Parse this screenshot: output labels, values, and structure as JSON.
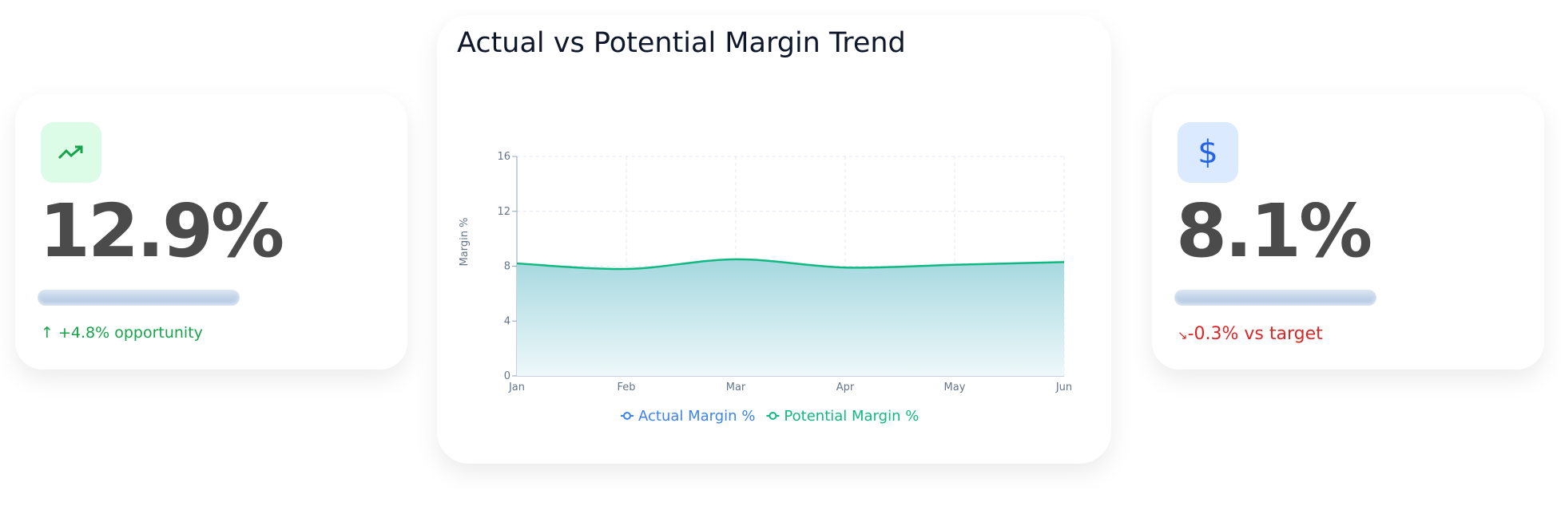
{
  "cards": [
    {
      "value": "12.9%",
      "note": "+4.8% opportunity"
    },
    {
      "value": "8.1%",
      "note": "-0.3% vs target"
    }
  ],
  "chart_data": {
    "type": "line",
    "title": "Actual vs Potential Margin Trend",
    "y_label": "Margin %",
    "categories": [
      "Jan",
      "Feb",
      "Mar",
      "Apr",
      "May",
      "Jun"
    ],
    "series": [
      {
        "name": "Actual Margin %",
        "color": "#3b82f6",
        "values": [
          null,
          null,
          null,
          null,
          null,
          null
        ]
      },
      {
        "name": "Potential Margin %",
        "color": "#10b981",
        "values": [
          8.2,
          7.8,
          8.5,
          7.9,
          8.1,
          8.3
        ]
      }
    ],
    "ylim": [
      0,
      16
    ],
    "yticks": [
      0,
      4,
      8,
      12,
      16
    ],
    "grid": true
  }
}
